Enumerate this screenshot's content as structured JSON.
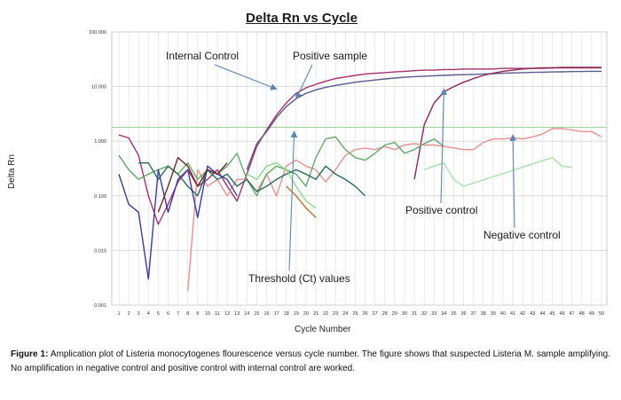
{
  "chart_data": {
    "type": "line",
    "title": "Delta Rn vs Cycle",
    "xlabel": "Cycle Number",
    "ylabel": "Delta Rn",
    "yscale": "log",
    "ylim": [
      0.001,
      100
    ],
    "xlim": [
      1,
      50
    ],
    "grid": true,
    "y_tick_labels": [
      "100.000",
      "10.000",
      "1.000",
      "0.100",
      "0.010",
      "0.001"
    ],
    "x_categories": [
      1,
      2,
      3,
      4,
      5,
      6,
      7,
      8,
      9,
      10,
      11,
      12,
      13,
      14,
      15,
      16,
      17,
      18,
      19,
      20,
      21,
      22,
      23,
      24,
      25,
      26,
      27,
      28,
      29,
      30,
      31,
      32,
      33,
      34,
      35,
      36,
      37,
      38,
      39,
      40,
      41,
      42,
      43,
      44,
      45,
      46,
      47,
      48,
      49,
      50
    ],
    "threshold_line": 1.8,
    "annotations": [
      {
        "text": "Internal Control",
        "points_to": [
          17,
          9
        ]
      },
      {
        "text": "Positive sample",
        "points_to": [
          19,
          6
        ]
      },
      {
        "text": "Positive control",
        "points_to": [
          34,
          9
        ]
      },
      {
        "text": "Negative control",
        "points_to": [
          41,
          1.3
        ]
      },
      {
        "text": "Threshold (Ct) values",
        "points_to": [
          18.8,
          1.5
        ]
      }
    ],
    "series": [
      {
        "color": "#a8306a",
        "points": [
          [
            1,
            1.3
          ],
          [
            2,
            1.15
          ],
          [
            3,
            0.55
          ],
          [
            4,
            0.1
          ],
          [
            5,
            0.03
          ],
          [
            6,
            0.07
          ],
          [
            7,
            0.18
          ],
          [
            8,
            0.3
          ],
          [
            9,
            0.15
          ],
          [
            10,
            0.2
          ],
          [
            11,
            0.3
          ],
          [
            12,
            0.15
          ],
          [
            13,
            0.08
          ],
          [
            14,
            0.25
          ],
          [
            15,
            0.8
          ],
          [
            16,
            1.6
          ],
          [
            17,
            3
          ],
          [
            18,
            5
          ],
          [
            19,
            7.5
          ],
          [
            20,
            9.5
          ],
          [
            21,
            11
          ],
          [
            22,
            12.5
          ],
          [
            23,
            14
          ],
          [
            24,
            15
          ],
          [
            25,
            16
          ],
          [
            26,
            17
          ],
          [
            27,
            17.5
          ],
          [
            28,
            18
          ],
          [
            29,
            18.5
          ],
          [
            30,
            19
          ],
          [
            31,
            19.5
          ],
          [
            32,
            20
          ],
          [
            33,
            20
          ],
          [
            34,
            20.5
          ],
          [
            35,
            20.5
          ],
          [
            36,
            21
          ],
          [
            37,
            21
          ],
          [
            38,
            21
          ],
          [
            39,
            21
          ],
          [
            40,
            21.5
          ],
          [
            41,
            21.5
          ],
          [
            42,
            21.5
          ],
          [
            43,
            21.5
          ],
          [
            44,
            21.5
          ],
          [
            45,
            22
          ],
          [
            46,
            22
          ],
          [
            47,
            22
          ],
          [
            48,
            22
          ],
          [
            49,
            22
          ],
          [
            50,
            22
          ]
        ]
      },
      {
        "color": "#5a5a8c",
        "points": [
          [
            14,
            0.3
          ],
          [
            15,
            0.9
          ],
          [
            16,
            1.5
          ],
          [
            17,
            2.7
          ],
          [
            18,
            4.3
          ],
          [
            19,
            6
          ],
          [
            20,
            7.5
          ],
          [
            21,
            8.7
          ],
          [
            22,
            9.7
          ],
          [
            23,
            10.5
          ],
          [
            24,
            11.2
          ],
          [
            25,
            12
          ],
          [
            26,
            12.6
          ],
          [
            27,
            13.2
          ],
          [
            28,
            13.8
          ],
          [
            29,
            14.3
          ],
          [
            30,
            14.8
          ],
          [
            31,
            15.2
          ],
          [
            32,
            15.5
          ],
          [
            33,
            15.8
          ],
          [
            34,
            16
          ],
          [
            35,
            16.3
          ],
          [
            36,
            16.5
          ],
          [
            37,
            16.7
          ],
          [
            38,
            17
          ],
          [
            39,
            17.2
          ],
          [
            40,
            17.5
          ],
          [
            41,
            17.8
          ],
          [
            42,
            18
          ],
          [
            43,
            18.2
          ],
          [
            44,
            18.3
          ],
          [
            45,
            18.5
          ],
          [
            46,
            18.6
          ],
          [
            47,
            18.8
          ],
          [
            48,
            18.9
          ],
          [
            49,
            19
          ],
          [
            50,
            19
          ]
        ]
      },
      {
        "color": "#8a2858",
        "points": [
          [
            31,
            0.2
          ],
          [
            32,
            2
          ],
          [
            33,
            5
          ],
          [
            34,
            8
          ],
          [
            35,
            10
          ],
          [
            36,
            12
          ],
          [
            37,
            14
          ],
          [
            38,
            16
          ],
          [
            39,
            17.5
          ],
          [
            40,
            19
          ],
          [
            41,
            20
          ],
          [
            42,
            21
          ],
          [
            43,
            21.5
          ],
          [
            44,
            22
          ],
          [
            45,
            22
          ],
          [
            46,
            22.5
          ],
          [
            47,
            22.5
          ],
          [
            48,
            22.5
          ],
          [
            49,
            22.5
          ],
          [
            50,
            22.5
          ]
        ]
      },
      {
        "color": "#e8908e",
        "points": [
          [
            8,
            0.0018
          ],
          [
            9,
            0.3
          ],
          [
            10,
            0.15
          ],
          [
            11,
            0.2
          ],
          [
            12,
            0.1
          ],
          [
            13,
            0.2
          ],
          [
            14,
            0.2
          ],
          [
            15,
            0.12
          ],
          [
            16,
            0.25
          ],
          [
            17,
            0.1
          ],
          [
            18,
            0.35
          ],
          [
            19,
            0.45
          ],
          [
            20,
            0.35
          ],
          [
            21,
            0.3
          ],
          [
            22,
            0.18
          ],
          [
            23,
            0.3
          ],
          [
            24,
            0.55
          ],
          [
            25,
            0.7
          ],
          [
            26,
            0.75
          ],
          [
            27,
            0.7
          ],
          [
            28,
            0.8
          ],
          [
            29,
            0.7
          ],
          [
            30,
            0.85
          ],
          [
            31,
            0.9
          ],
          [
            32,
            0.85
          ],
          [
            33,
            0.85
          ],
          [
            34,
            0.8
          ],
          [
            35,
            0.75
          ],
          [
            36,
            0.7
          ],
          [
            37,
            0.7
          ],
          [
            38,
            0.95
          ],
          [
            39,
            1.1
          ],
          [
            40,
            1.1
          ],
          [
            41,
            1.15
          ],
          [
            42,
            1.1
          ],
          [
            43,
            1.2
          ],
          [
            44,
            1.35
          ],
          [
            45,
            1.7
          ],
          [
            46,
            1.7
          ],
          [
            47,
            1.6
          ],
          [
            48,
            1.5
          ],
          [
            49,
            1.5
          ],
          [
            50,
            1.2
          ]
        ]
      },
      {
        "color": "#62a86a",
        "points": [
          [
            1,
            0.55
          ],
          [
            2,
            0.3
          ],
          [
            3,
            0.2
          ],
          [
            4,
            0.25
          ],
          [
            5,
            0.3
          ],
          [
            6,
            0.35
          ],
          [
            7,
            0.25
          ],
          [
            8,
            0.4
          ],
          [
            9,
            0.2
          ],
          [
            10,
            0.3
          ],
          [
            11,
            0.25
          ],
          [
            12,
            0.35
          ],
          [
            13,
            0.6
          ],
          [
            14,
            0.2
          ],
          [
            15,
            0.1
          ],
          [
            16,
            0.25
          ],
          [
            17,
            0.35
          ],
          [
            18,
            0.3
          ],
          [
            19,
            0.25
          ],
          [
            20,
            0.15
          ],
          [
            21,
            0.5
          ],
          [
            22,
            1.1
          ],
          [
            23,
            1.2
          ],
          [
            24,
            0.7
          ],
          [
            25,
            0.5
          ],
          [
            26,
            0.45
          ],
          [
            27,
            0.6
          ],
          [
            28,
            0.85
          ],
          [
            29,
            0.95
          ],
          [
            30,
            0.6
          ],
          [
            31,
            0.7
          ],
          [
            32,
            0.9
          ],
          [
            33,
            1.1
          ],
          [
            34,
            0.8
          ]
        ]
      },
      {
        "color": "#2a6a5a",
        "points": [
          [
            3,
            0.4
          ],
          [
            4,
            0.4
          ],
          [
            5,
            0.2
          ],
          [
            6,
            0.35
          ],
          [
            7,
            0.25
          ],
          [
            8,
            0.15
          ],
          [
            9,
            0.1
          ],
          [
            10,
            0.3
          ],
          [
            11,
            0.2
          ],
          [
            12,
            0.25
          ],
          [
            13,
            0.15
          ],
          [
            14,
            0.2
          ],
          [
            15,
            0.12
          ],
          [
            16,
            0.15
          ],
          [
            17,
            0.2
          ],
          [
            18,
            0.25
          ],
          [
            19,
            0.3
          ],
          [
            20,
            0.25
          ],
          [
            21,
            0.2
          ],
          [
            22,
            0.35
          ],
          [
            23,
            0.25
          ],
          [
            24,
            0.2
          ],
          [
            25,
            0.15
          ],
          [
            26,
            0.1
          ]
        ]
      },
      {
        "color": "#3a3aa0",
        "points": [
          [
            1,
            0.25
          ],
          [
            2,
            0.07
          ],
          [
            3,
            0.05
          ],
          [
            4,
            0.003
          ],
          [
            5,
            0.3
          ],
          [
            6,
            0.05
          ],
          [
            7,
            0.2
          ],
          [
            8,
            0.3
          ],
          [
            9,
            0.04
          ],
          [
            10,
            0.35
          ],
          [
            11,
            0.25
          ],
          [
            12,
            0.2
          ],
          [
            13,
            0.1
          ]
        ]
      },
      {
        "color": "#6a2a2a",
        "points": [
          [
            5,
            0.05
          ],
          [
            6,
            0.15
          ],
          [
            7,
            0.5
          ],
          [
            8,
            0.35
          ],
          [
            9,
            0.15
          ],
          [
            10,
            0.3
          ],
          [
            11,
            0.25
          ],
          [
            12,
            0.4
          ]
        ]
      },
      {
        "color": "#8fd88f",
        "points": [
          [
            14,
            0.25
          ],
          [
            15,
            0.2
          ],
          [
            16,
            0.35
          ],
          [
            17,
            0.4
          ],
          [
            18,
            0.3
          ],
          [
            19,
            0.15
          ],
          [
            20,
            0.08
          ],
          [
            21,
            0.06
          ]
        ]
      },
      {
        "color": "#a8e0a8",
        "points": [
          [
            32,
            0.3
          ],
          [
            33,
            0.35
          ],
          [
            34,
            0.4
          ],
          [
            35,
            0.2
          ],
          [
            36,
            0.15
          ],
          [
            45,
            0.5
          ],
          [
            46,
            0.35
          ],
          [
            47,
            0.33
          ]
        ]
      },
      {
        "color": "#c07030",
        "points": [
          [
            18,
            0.15
          ],
          [
            19,
            0.1
          ],
          [
            20,
            0.06
          ],
          [
            21,
            0.04
          ]
        ]
      }
    ]
  },
  "caption": {
    "label": "Figure 1:",
    "text": " Amplication plot of Listeria monocytogenes flourescence versus cycle number. The figure shows that suspected Listeria M. sample amplifying. No amplification in negative control and positive control with internal control are worked."
  }
}
